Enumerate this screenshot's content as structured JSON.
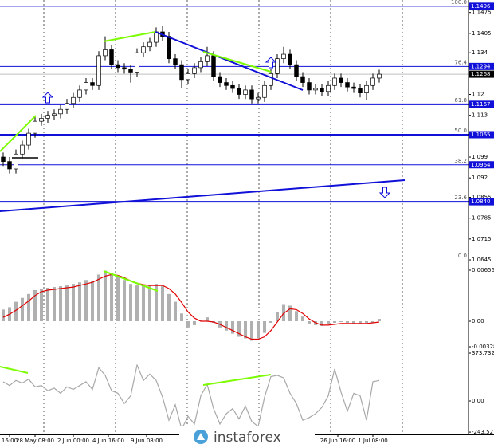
{
  "chart_data": [
    {
      "type": "candlestick",
      "xlim": [
        -0.5,
        73
      ],
      "ylim": [
        1.0629,
        1.1517
      ],
      "yticks": [
        1.1475,
        1.1405,
        1.134,
        1.12,
        1.113,
        1.099,
        1.092,
        1.0855,
        1.0785,
        1.0715,
        1.0645
      ],
      "xticks": [
        {
          "value": 1,
          "label": "16:00"
        },
        {
          "value": 5,
          "label": "28 May 08:00"
        },
        {
          "value": 11,
          "label": "2 Jun 00:00"
        },
        {
          "value": 16.5,
          "label": "4 Jun 16:00"
        },
        {
          "value": 22.5,
          "label": "9 Jun 08:00"
        },
        {
          "value": 28.5,
          "label": "12"
        },
        {
          "value": 52.5,
          "label": "26 Jun 16:00"
        },
        {
          "value": 58,
          "label": "1 Jul 08:00"
        }
      ],
      "open": [
        1.099,
        1.0975,
        1.095,
        1.1,
        1.103,
        1.107,
        1.111,
        1.112,
        1.113,
        1.1135,
        1.115,
        1.117,
        1.119,
        1.1215,
        1.124,
        1.123,
        1.133,
        1.135,
        1.13,
        1.129,
        1.1285,
        1.1275,
        1.134,
        1.136,
        1.1375,
        1.141,
        1.1395,
        1.132,
        1.13,
        1.125,
        1.127,
        1.129,
        1.131,
        1.133,
        1.126,
        1.124,
        1.123,
        1.122,
        1.12,
        1.1215,
        1.1185,
        1.119,
        1.123,
        1.127,
        1.132,
        1.1335,
        1.13,
        1.126,
        1.124,
        1.1215,
        1.122,
        1.121,
        1.123,
        1.1255,
        1.124,
        1.1225,
        1.122,
        1.1205,
        1.123,
        1.1255
      ],
      "high": [
        1.1005,
        1.099,
        1.1015,
        1.1045,
        1.1085,
        1.1125,
        1.1135,
        1.1145,
        1.115,
        1.1165,
        1.1185,
        1.1205,
        1.123,
        1.1255,
        1.1255,
        1.1345,
        1.1395,
        1.1365,
        1.1315,
        1.1305,
        1.13,
        1.1355,
        1.1375,
        1.139,
        1.1425,
        1.143,
        1.141,
        1.1335,
        1.1315,
        1.1285,
        1.1305,
        1.1325,
        1.136,
        1.1345,
        1.1275,
        1.1255,
        1.1245,
        1.1235,
        1.123,
        1.123,
        1.1205,
        1.1245,
        1.1285,
        1.1335,
        1.136,
        1.135,
        1.1315,
        1.1275,
        1.1255,
        1.1235,
        1.1235,
        1.1245,
        1.127,
        1.127,
        1.1255,
        1.124,
        1.1235,
        1.1245,
        1.127,
        1.1283
      ],
      "low": [
        1.096,
        1.0935,
        1.0935,
        1.0985,
        1.1015,
        1.1055,
        1.1095,
        1.1105,
        1.1115,
        1.112,
        1.1135,
        1.1155,
        1.1175,
        1.12,
        1.1215,
        1.1215,
        1.1315,
        1.1285,
        1.1275,
        1.127,
        1.124,
        1.126,
        1.1325,
        1.1345,
        1.136,
        1.138,
        1.1305,
        1.1285,
        1.122,
        1.1235,
        1.1255,
        1.1275,
        1.1295,
        1.1245,
        1.1225,
        1.1215,
        1.1205,
        1.1185,
        1.1185,
        1.117,
        1.117,
        1.1175,
        1.1215,
        1.1255,
        1.1305,
        1.1285,
        1.1245,
        1.1225,
        1.12,
        1.12,
        1.1195,
        1.1195,
        1.1215,
        1.1225,
        1.121,
        1.1205,
        1.119,
        1.118,
        1.1215,
        1.124
      ],
      "close": [
        1.0975,
        1.095,
        1.1,
        1.103,
        1.107,
        1.111,
        1.112,
        1.113,
        1.1135,
        1.115,
        1.117,
        1.119,
        1.1215,
        1.124,
        1.123,
        1.133,
        1.135,
        1.13,
        1.129,
        1.1285,
        1.1275,
        1.134,
        1.136,
        1.1375,
        1.141,
        1.1395,
        1.132,
        1.13,
        1.125,
        1.127,
        1.129,
        1.131,
        1.133,
        1.126,
        1.124,
        1.123,
        1.122,
        1.12,
        1.1215,
        1.1185,
        1.119,
        1.123,
        1.127,
        1.132,
        1.1335,
        1.13,
        1.126,
        1.124,
        1.1215,
        1.122,
        1.121,
        1.123,
        1.1255,
        1.124,
        1.1225,
        1.122,
        1.1205,
        1.123,
        1.1255,
        1.1268
      ],
      "levels": [
        {
          "price": 1.1496,
          "label": "1.1496",
          "fib": "100.0",
          "thick": false
        },
        {
          "price": 1.1294,
          "label": "1.1294",
          "fib": "76.4",
          "thick": false
        },
        {
          "price": 1.1167,
          "label": "1.1167",
          "fib": "61.8",
          "thick": true
        },
        {
          "price": 1.1065,
          "label": "1.1065",
          "fib": "50.0",
          "thick": true
        },
        {
          "price": 1.0964,
          "label": "1.0964",
          "fib": "38.2",
          "thick": false
        },
        {
          "price": 1.084,
          "label": "1.0840",
          "fib": "23.6",
          "thick": true
        },
        {
          "price": 1.0645,
          "fib": "0.0",
          "thick": false
        }
      ],
      "last_price": {
        "value": 1.1268,
        "label": "1.1268"
      },
      "level_color": "#1010d8",
      "watermark": "instaforex"
    },
    {
      "type": "macd",
      "xlim": [
        -0.5,
        73
      ],
      "ylim": [
        -0.00338,
        0.00707
      ],
      "yticks": [
        0.00656,
        {
          "value": 0,
          "label": "0.00"
        },
        -0.00328
      ],
      "series": [
        {
          "kind": "histogram",
          "color": "#b0b0b0",
          "values": [
            0.0015,
            0.0018,
            0.0025,
            0.003,
            0.0035,
            0.004,
            0.0042,
            0.0043,
            0.0044,
            0.0045,
            0.0046,
            0.0048,
            0.005,
            0.0053,
            0.0052,
            0.006,
            0.0065,
            0.0062,
            0.0058,
            0.0053,
            0.0048,
            0.0046,
            0.0045,
            0.0046,
            0.0048,
            0.0045,
            0.0035,
            0.0025,
            0.001,
            -0.0008,
            -0.0005,
            0.0002,
            0.0005,
            -0.0002,
            -0.0008,
            -0.0012,
            -0.0016,
            -0.002,
            -0.0022,
            -0.0025,
            -0.0022,
            -0.0015,
            -0.0002,
            0.0012,
            0.0022,
            0.002,
            0.0013,
            0.0006,
            -0.0003,
            -0.0005,
            -0.0006,
            -0.0004,
            -0.0002,
            -0.0001,
            -0.0002,
            -0.0003,
            -0.0003,
            -0.0002,
            -0.0002,
            0.0003
          ]
        },
        {
          "kind": "line",
          "color": "#e00000",
          "values": [
            0.0005,
            0.0009,
            0.0014,
            0.002,
            0.0026,
            0.0033,
            0.0038,
            0.004,
            0.0041,
            0.0042,
            0.0043,
            0.0044,
            0.0046,
            0.0048,
            0.005,
            0.0054,
            0.0058,
            0.006,
            0.0059,
            0.0056,
            0.0052,
            0.0049,
            0.0047,
            0.0046,
            0.0046,
            0.0046,
            0.0042,
            0.0035,
            0.0024,
            0.0012,
            0.0004,
            0.0,
            0.0,
            -0.0001,
            -0.0004,
            -0.0008,
            -0.0012,
            -0.0016,
            -0.002,
            -0.0023,
            -0.0023,
            -0.002,
            -0.0012,
            -0.0001,
            0.001,
            0.0016,
            0.0015,
            0.001,
            0.0003,
            -0.0002,
            -0.0005,
            -0.0005,
            -0.0004,
            -0.0003,
            -0.0003,
            -0.0003,
            -0.0003,
            -0.0003,
            -0.0002,
            -0.0001
          ]
        }
      ]
    },
    {
      "type": "cci",
      "xlim": [
        -0.5,
        73
      ],
      "ylim": [
        -261.7,
        404.9
      ],
      "yticks": [
        373.7321,
        {
          "value": 0,
          "label": "0.00"
        },
        -243.5272
      ],
      "series": [
        {
          "kind": "line",
          "color": "#a8a8a8",
          "values": [
            150,
            120,
            160,
            140,
            170,
            110,
            120,
            80,
            100,
            60,
            110,
            90,
            120,
            150,
            90,
            260,
            200,
            80,
            60,
            -20,
            40,
            280,
            160,
            210,
            160,
            30,
            -150,
            -30,
            -220,
            -120,
            -180,
            40,
            130,
            -60,
            -180,
            -100,
            -60,
            -140,
            -40,
            -160,
            -200,
            30,
            190,
            200,
            180,
            60,
            -20,
            -150,
            -130,
            -100,
            -50,
            40,
            250,
            70,
            -80,
            60,
            40,
            -150,
            150,
            160
          ]
        }
      ]
    }
  ]
}
